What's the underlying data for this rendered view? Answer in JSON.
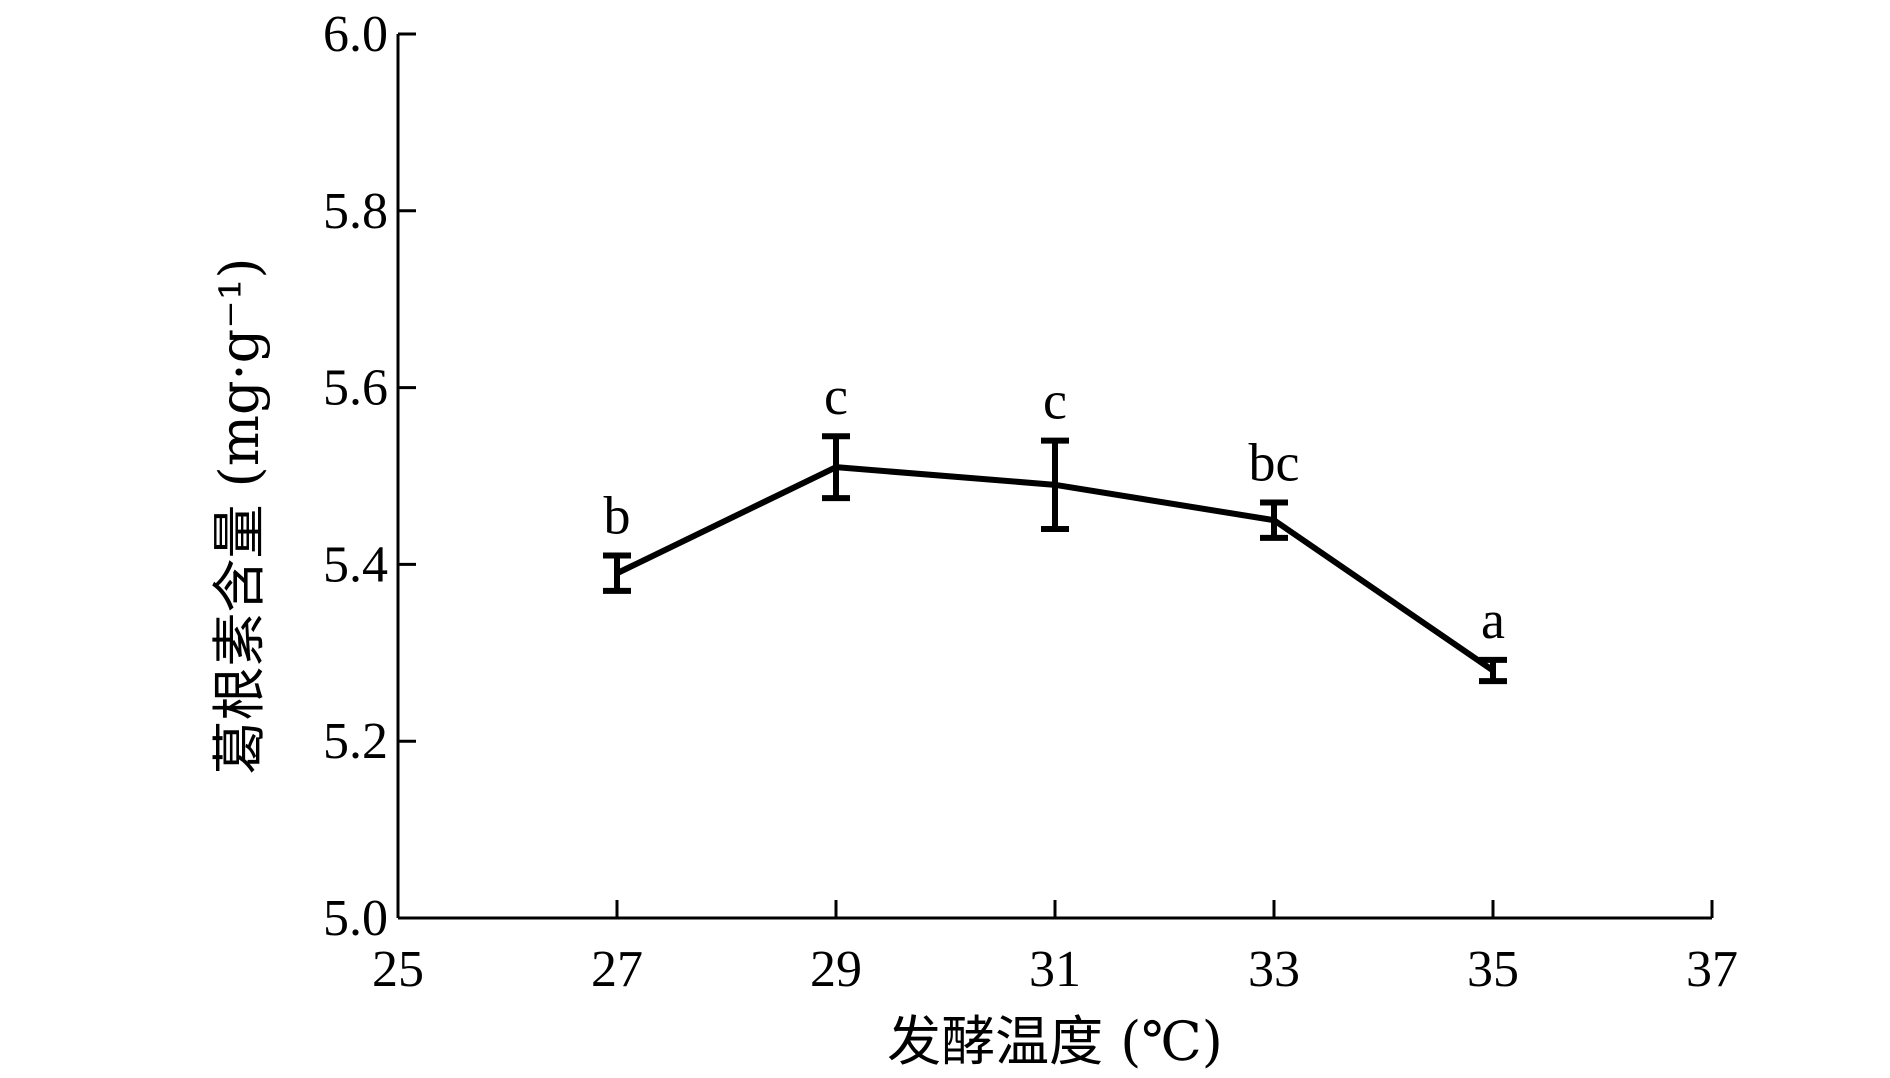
{
  "chart_data": {
    "type": "line",
    "xlabel": "发酵温度 (℃)",
    "ylabel": "葛根素含量 (mg·g⁻¹)",
    "xlim": [
      25,
      37
    ],
    "ylim": [
      5.0,
      6.0
    ],
    "x_ticks": [
      "25",
      "27",
      "29",
      "31",
      "33",
      "35",
      "37"
    ],
    "y_ticks": [
      "5.0",
      "5.2",
      "5.4",
      "5.6",
      "5.8",
      "6.0"
    ],
    "grid": false,
    "series": [
      {
        "x": [
          27,
          29,
          31,
          33,
          35
        ],
        "values": [
          5.39,
          5.51,
          5.49,
          5.45,
          5.28
        ],
        "errors": [
          0.02,
          0.035,
          0.05,
          0.02,
          0.012
        ],
        "significance": [
          "b",
          "c",
          "c",
          "bc",
          "a"
        ]
      }
    ]
  }
}
